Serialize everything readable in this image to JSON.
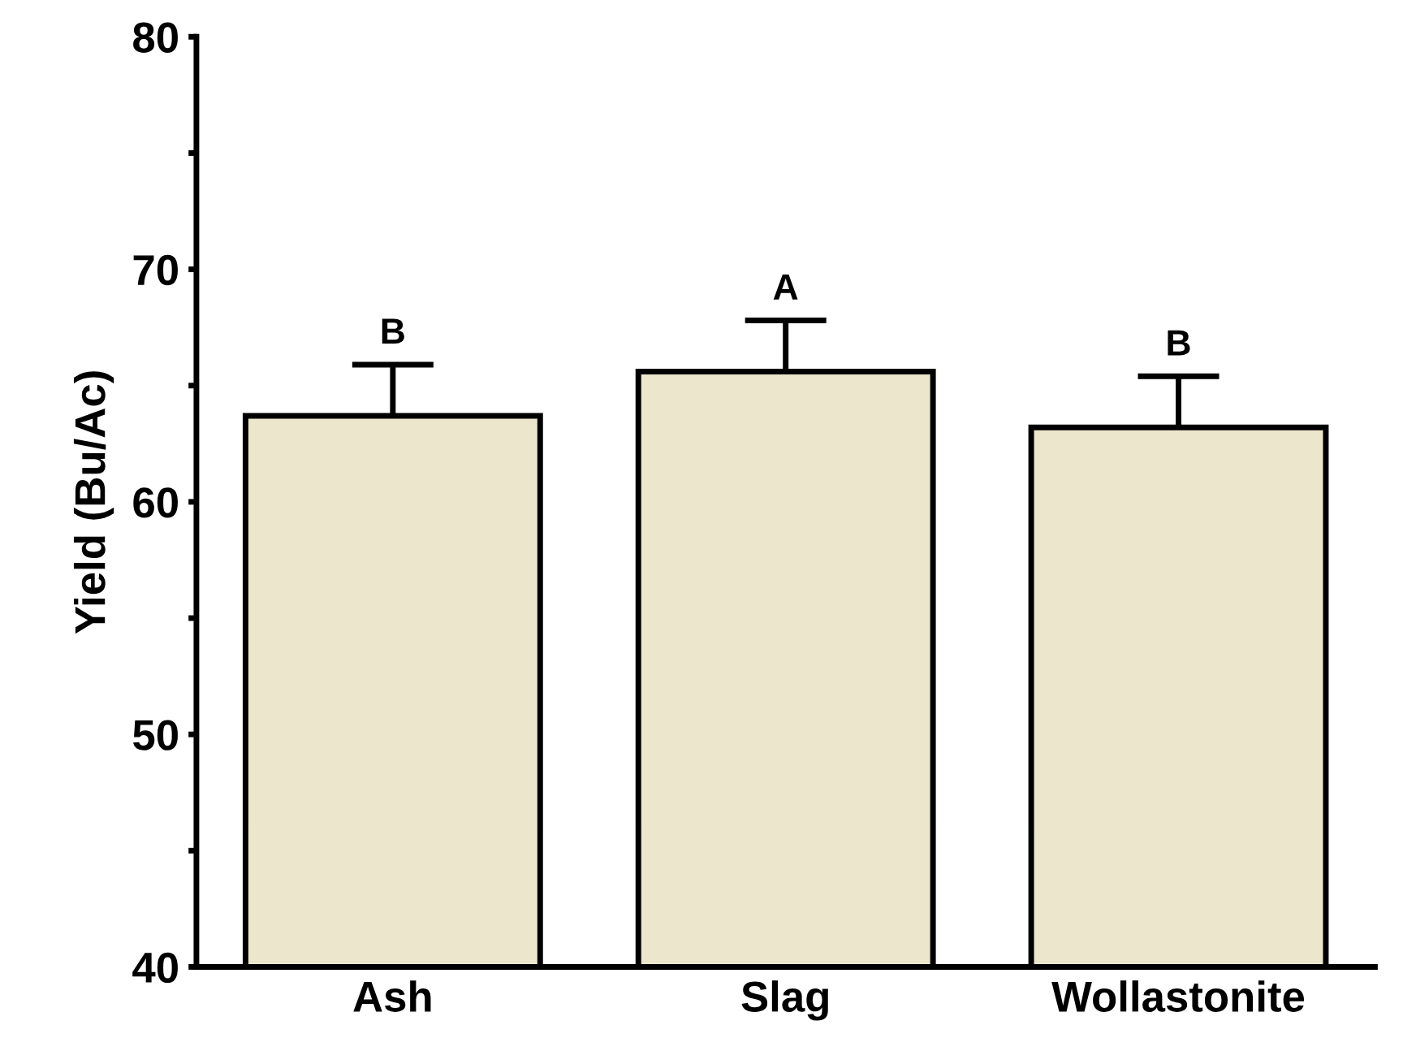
{
  "chart_data": {
    "type": "bar",
    "ylabel": "Yield (Bu/Ac)",
    "categories": [
      "Ash",
      "Slag",
      "Wollastonite"
    ],
    "values": [
      63.7,
      65.6,
      63.2
    ],
    "errors": [
      2.2,
      2.2,
      2.2
    ],
    "color": "#ece6cc",
    "ylim": [
      40,
      80
    ],
    "yticks": [
      40,
      {
        "value": 45,
        "label": null
      },
      50,
      {
        "value": 55,
        "label": null
      },
      60,
      {
        "value": 65,
        "label": null
      },
      70,
      {
        "value": 75,
        "label": null
      },
      80
    ],
    "annotations": [
      "B",
      "A",
      "B"
    ],
    "grid": false
  }
}
